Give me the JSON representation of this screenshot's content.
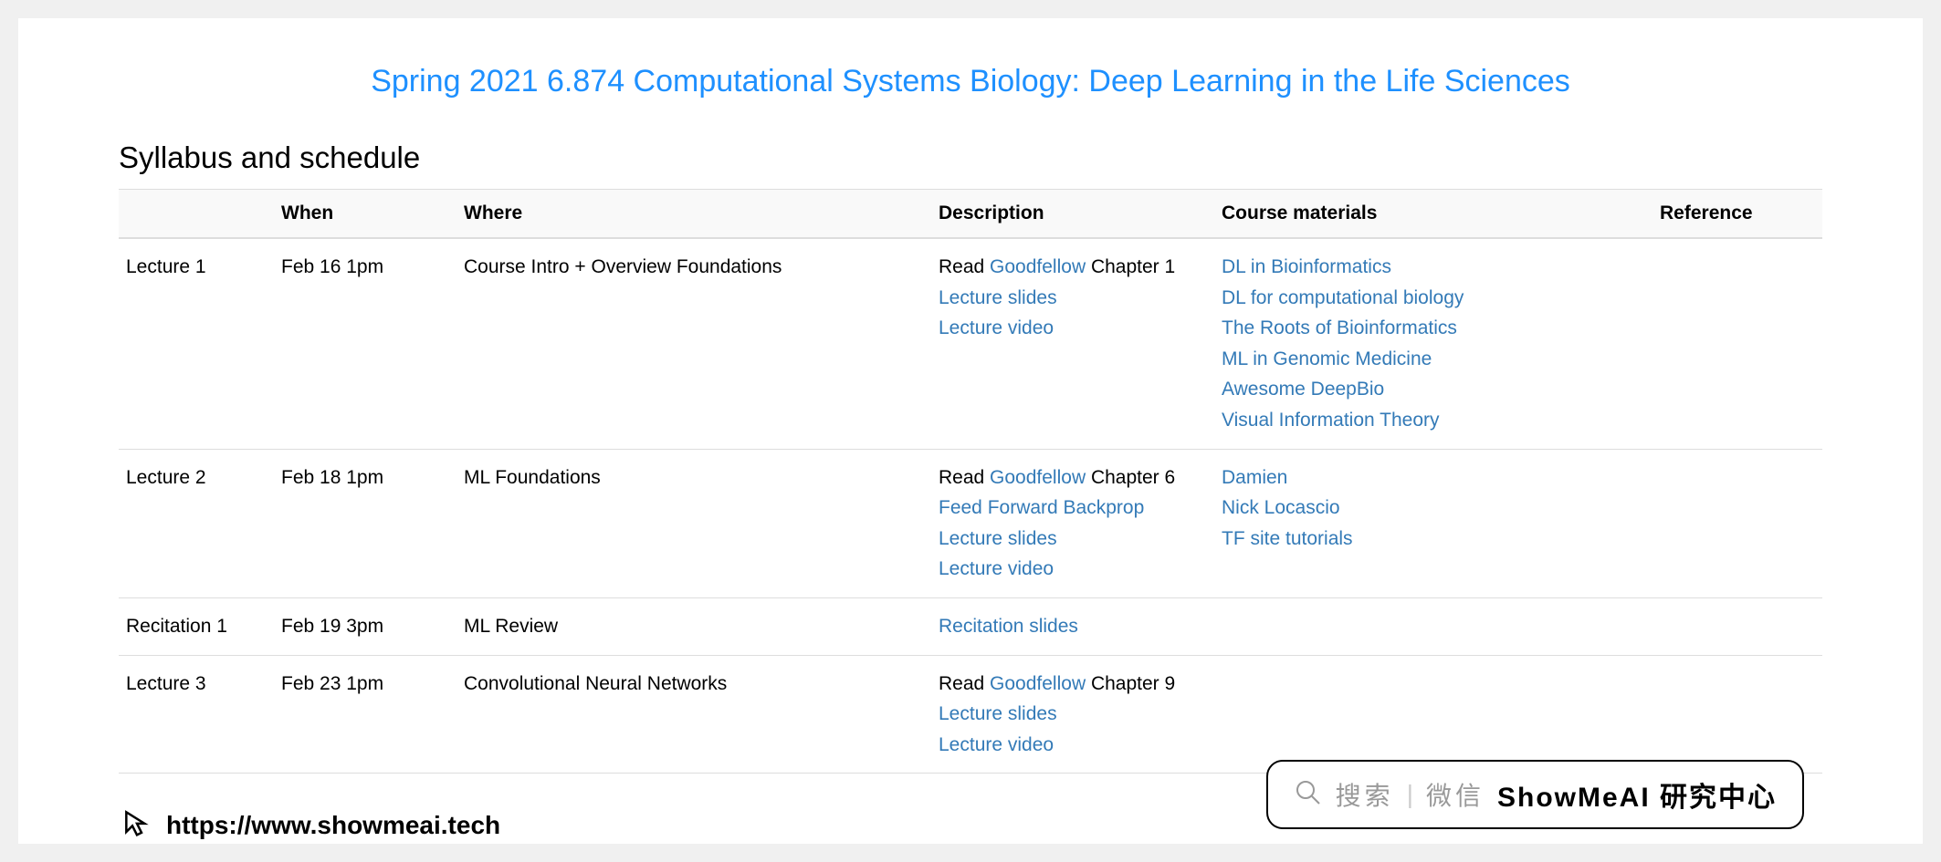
{
  "page": {
    "course_title": "Spring 2021 6.874 Computational Systems Biology: Deep Learning in the Life Sciences",
    "section_heading": "Syllabus and schedule",
    "link_color": "#337ab7",
    "title_color": "#1e90ff",
    "header_bg": "#f9f9f9",
    "border_color": "#dddddd"
  },
  "table": {
    "headers": {
      "event": "",
      "when": "When",
      "where": "Where",
      "description": "Description",
      "materials": "Course materials",
      "reference": "Reference"
    },
    "rows": [
      {
        "event": "Lecture 1",
        "when": "Feb 16 1pm",
        "where": "Course Intro + Overview Foundations",
        "description": [
          {
            "parts": [
              {
                "t": "Read ",
                "link": false
              },
              {
                "t": "Goodfellow",
                "link": true
              },
              {
                "t": " Chapter 1",
                "link": false
              }
            ]
          },
          {
            "parts": [
              {
                "t": "Lecture slides",
                "link": true
              }
            ]
          },
          {
            "parts": [
              {
                "t": "Lecture video",
                "link": true
              }
            ]
          }
        ],
        "materials": [
          {
            "parts": [
              {
                "t": "DL in Bioinformatics",
                "link": true
              }
            ]
          },
          {
            "parts": [
              {
                "t": "DL for computational biology",
                "link": true
              }
            ]
          },
          {
            "parts": [
              {
                "t": "The Roots of Bioinformatics",
                "link": true
              }
            ]
          },
          {
            "parts": [
              {
                "t": "ML in Genomic Medicine",
                "link": true
              }
            ]
          },
          {
            "parts": [
              {
                "t": "Awesome DeepBio",
                "link": true
              }
            ]
          },
          {
            "parts": [
              {
                "t": "Visual Information Theory",
                "link": true
              }
            ]
          }
        ],
        "reference": ""
      },
      {
        "event": "Lecture 2",
        "when": "Feb 18 1pm",
        "where": "ML Foundations",
        "description": [
          {
            "parts": [
              {
                "t": "Read ",
                "link": false
              },
              {
                "t": "Goodfellow",
                "link": true
              },
              {
                "t": " Chapter 6",
                "link": false
              }
            ]
          },
          {
            "parts": [
              {
                "t": "Feed Forward Backprop",
                "link": true
              }
            ]
          },
          {
            "parts": [
              {
                "t": "Lecture slides",
                "link": true
              }
            ]
          },
          {
            "parts": [
              {
                "t": "Lecture video",
                "link": true
              }
            ]
          }
        ],
        "materials": [
          {
            "parts": [
              {
                "t": "Damien",
                "link": true
              }
            ]
          },
          {
            "parts": [
              {
                "t": "Nick Locascio",
                "link": true
              }
            ]
          },
          {
            "parts": [
              {
                "t": "TF site tutorials",
                "link": true
              }
            ]
          }
        ],
        "reference": ""
      },
      {
        "event": "Recitation 1",
        "when": "Feb 19 3pm",
        "where": "ML Review",
        "description": [
          {
            "parts": [
              {
                "t": "Recitation slides",
                "link": true
              }
            ]
          }
        ],
        "materials": [],
        "reference": ""
      },
      {
        "event": "Lecture 3",
        "when": "Feb 23 1pm",
        "where": "Convolutional Neural Networks",
        "description": [
          {
            "parts": [
              {
                "t": "Read ",
                "link": false
              },
              {
                "t": "Goodfellow",
                "link": true
              },
              {
                "t": " Chapter 9",
                "link": false
              }
            ]
          },
          {
            "parts": [
              {
                "t": "Lecture slides",
                "link": true
              }
            ]
          },
          {
            "parts": [
              {
                "t": "Lecture video",
                "link": true
              }
            ]
          }
        ],
        "materials": [],
        "reference": ""
      }
    ]
  },
  "watermark": {
    "url": "https://www.showmeai.tech",
    "search_label": "搜索",
    "wechat_label": "微信",
    "brand": "ShowMeAI 研究中心"
  }
}
